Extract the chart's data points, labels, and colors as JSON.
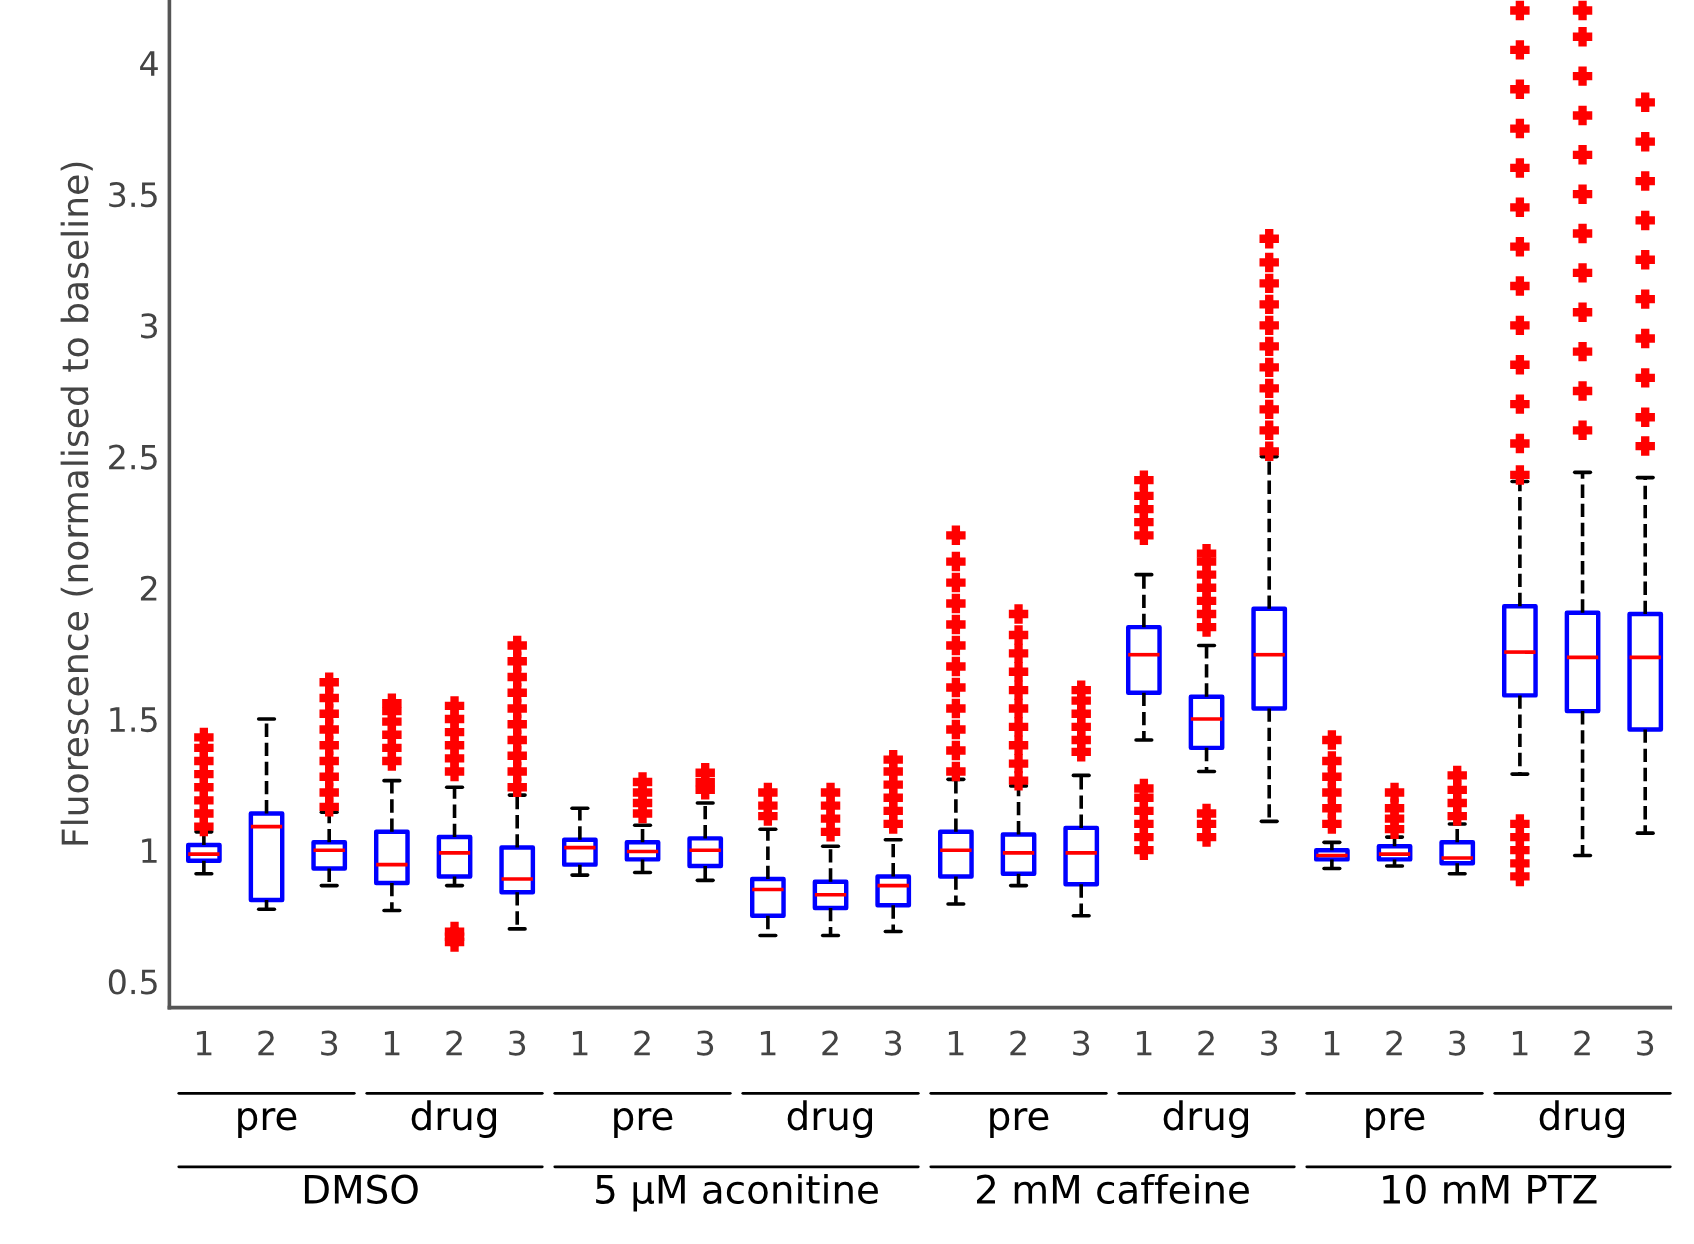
{
  "chart_data": {
    "type": "box",
    "ylabel": "Fluorescence (normalised to baseline)",
    "categories": [
      "1",
      "2",
      "3",
      "1",
      "2",
      "3",
      "1",
      "2",
      "3",
      "1",
      "2",
      "3",
      "1",
      "2",
      "3",
      "1",
      "2",
      "3",
      "1",
      "2",
      "3",
      "1",
      "2",
      "3"
    ],
    "annotations": [
      "pre",
      "drug",
      "pre",
      "drug",
      "pre",
      "drug",
      "pre",
      "drug",
      "DMSO",
      "5 µM aconitine",
      "2 mM caffeine",
      "10 mM PTZ"
    ],
    "color": "#0000ff",
    "marker": "cross",
    "line_style": "dashed",
    "ylim": [
      0.4,
      4.24
    ],
    "yticks": [
      0.5,
      1,
      1.5,
      2,
      2.5,
      3,
      3.5,
      4
    ],
    "grid": false,
    "boxes": [
      {
        "low": 0.91,
        "q1": 0.96,
        "median": 0.985,
        "q3": 1.02,
        "high": 1.07,
        "outliers": [
          1.09,
          1.14,
          1.19,
          1.24,
          1.29,
          1.34,
          1.39,
          1.43
        ]
      },
      {
        "low": 0.775,
        "q1": 0.81,
        "median": 1.09,
        "q3": 1.14,
        "high": 1.5
      },
      {
        "low": 0.865,
        "q1": 0.93,
        "median": 1.0,
        "q3": 1.03,
        "high": 1.145,
        "outliers": [
          1.165,
          1.22,
          1.28,
          1.34,
          1.4,
          1.46,
          1.52,
          1.58,
          1.64
        ]
      },
      {
        "low": 0.77,
        "q1": 0.875,
        "median": 0.945,
        "q3": 1.07,
        "high": 1.265,
        "outliers": [
          1.34,
          1.39,
          1.44,
          1.49,
          1.53,
          1.56
        ]
      },
      {
        "low": 0.865,
        "q1": 0.9,
        "median": 0.99,
        "q3": 1.05,
        "high": 1.24,
        "outliers": [
          0.65,
          0.67,
          0.69,
          1.3,
          1.35,
          1.4,
          1.45,
          1.5,
          1.55
        ]
      },
      {
        "low": 0.7,
        "q1": 0.84,
        "median": 0.89,
        "q3": 1.01,
        "high": 1.21,
        "outliers": [
          1.24,
          1.3,
          1.36,
          1.42,
          1.48,
          1.54,
          1.6,
          1.66,
          1.72,
          1.78
        ]
      },
      {
        "low": 0.905,
        "q1": 0.945,
        "median": 1.01,
        "q3": 1.04,
        "high": 1.16
      },
      {
        "low": 0.915,
        "q1": 0.965,
        "median": 0.995,
        "q3": 1.03,
        "high": 1.095,
        "outliers": [
          1.14,
          1.18,
          1.22,
          1.26
        ]
      },
      {
        "low": 0.885,
        "q1": 0.94,
        "median": 1.0,
        "q3": 1.045,
        "high": 1.18,
        "outliers": [
          1.23,
          1.26,
          1.295
        ]
      },
      {
        "low": 0.675,
        "q1": 0.75,
        "median": 0.85,
        "q3": 0.89,
        "high": 1.08,
        "outliers": [
          1.13,
          1.17,
          1.22
        ]
      },
      {
        "low": 0.675,
        "q1": 0.78,
        "median": 0.83,
        "q3": 0.88,
        "high": 1.015,
        "outliers": [
          1.07,
          1.12,
          1.17,
          1.22
        ]
      },
      {
        "low": 0.69,
        "q1": 0.79,
        "median": 0.865,
        "q3": 0.9,
        "high": 1.04,
        "outliers": [
          1.1,
          1.15,
          1.2,
          1.25,
          1.3,
          1.345
        ]
      },
      {
        "low": 0.795,
        "q1": 0.9,
        "median": 1.0,
        "q3": 1.07,
        "high": 1.27,
        "outliers": [
          1.3,
          1.38,
          1.46,
          1.54,
          1.62,
          1.7,
          1.78,
          1.86,
          1.94,
          2.02,
          2.1,
          2.2
        ]
      },
      {
        "low": 0.865,
        "q1": 0.91,
        "median": 0.99,
        "q3": 1.06,
        "high": 1.245,
        "outliers": [
          1.265,
          1.33,
          1.4,
          1.47,
          1.54,
          1.61,
          1.68,
          1.75,
          1.82,
          1.9
        ]
      },
      {
        "low": 0.75,
        "q1": 0.87,
        "median": 0.99,
        "q3": 1.085,
        "high": 1.285,
        "outliers": [
          1.375,
          1.42,
          1.47,
          1.52,
          1.57,
          1.61
        ]
      },
      {
        "low": 1.42,
        "q1": 1.6,
        "median": 1.745,
        "q3": 1.85,
        "high": 2.05,
        "outliers": [
          1.0,
          1.05,
          1.1,
          1.15,
          1.2,
          1.235,
          2.2,
          2.25,
          2.3,
          2.35,
          2.41
        ]
      },
      {
        "low": 1.3,
        "q1": 1.39,
        "median": 1.5,
        "q3": 1.585,
        "high": 1.78,
        "outliers": [
          1.05,
          1.1,
          1.14,
          1.85,
          1.9,
          1.95,
          2.0,
          2.05,
          2.1,
          2.13
        ]
      },
      {
        "low": 1.11,
        "q1": 1.54,
        "median": 1.745,
        "q3": 1.92,
        "high": 2.5,
        "outliers": [
          2.52,
          2.6,
          2.68,
          2.76,
          2.84,
          2.92,
          3.0,
          3.08,
          3.16,
          3.24,
          3.33
        ]
      },
      {
        "low": 0.93,
        "q1": 0.965,
        "median": 0.98,
        "q3": 1.0,
        "high": 1.03,
        "outliers": [
          1.1,
          1.16,
          1.22,
          1.28,
          1.34,
          1.42
        ]
      },
      {
        "low": 0.94,
        "q1": 0.965,
        "median": 0.985,
        "q3": 1.015,
        "high": 1.05,
        "outliers": [
          1.08,
          1.12,
          1.16,
          1.22
        ]
      },
      {
        "low": 0.91,
        "q1": 0.95,
        "median": 0.97,
        "q3": 1.03,
        "high": 1.1,
        "outliers": [
          1.13,
          1.18,
          1.23,
          1.285
        ]
      },
      {
        "low": 1.29,
        "q1": 1.59,
        "median": 1.755,
        "q3": 1.93,
        "high": 2.405,
        "outliers": [
          0.9,
          0.95,
          1.0,
          1.05,
          1.1,
          2.43,
          2.55,
          2.7,
          2.85,
          3.0,
          3.15,
          3.3,
          3.45,
          3.6,
          3.75,
          3.9,
          4.05,
          4.2
        ]
      },
      {
        "low": 0.98,
        "q1": 1.53,
        "median": 1.735,
        "q3": 1.905,
        "high": 2.44,
        "outliers": [
          2.6,
          2.75,
          2.9,
          3.05,
          3.2,
          3.35,
          3.5,
          3.65,
          3.8,
          3.95,
          4.1,
          4.2
        ]
      },
      {
        "low": 1.065,
        "q1": 1.46,
        "median": 1.735,
        "q3": 1.9,
        "high": 2.42,
        "outliers": [
          2.54,
          2.65,
          2.8,
          2.95,
          3.1,
          3.25,
          3.4,
          3.55,
          3.7,
          3.85
        ]
      }
    ]
  }
}
